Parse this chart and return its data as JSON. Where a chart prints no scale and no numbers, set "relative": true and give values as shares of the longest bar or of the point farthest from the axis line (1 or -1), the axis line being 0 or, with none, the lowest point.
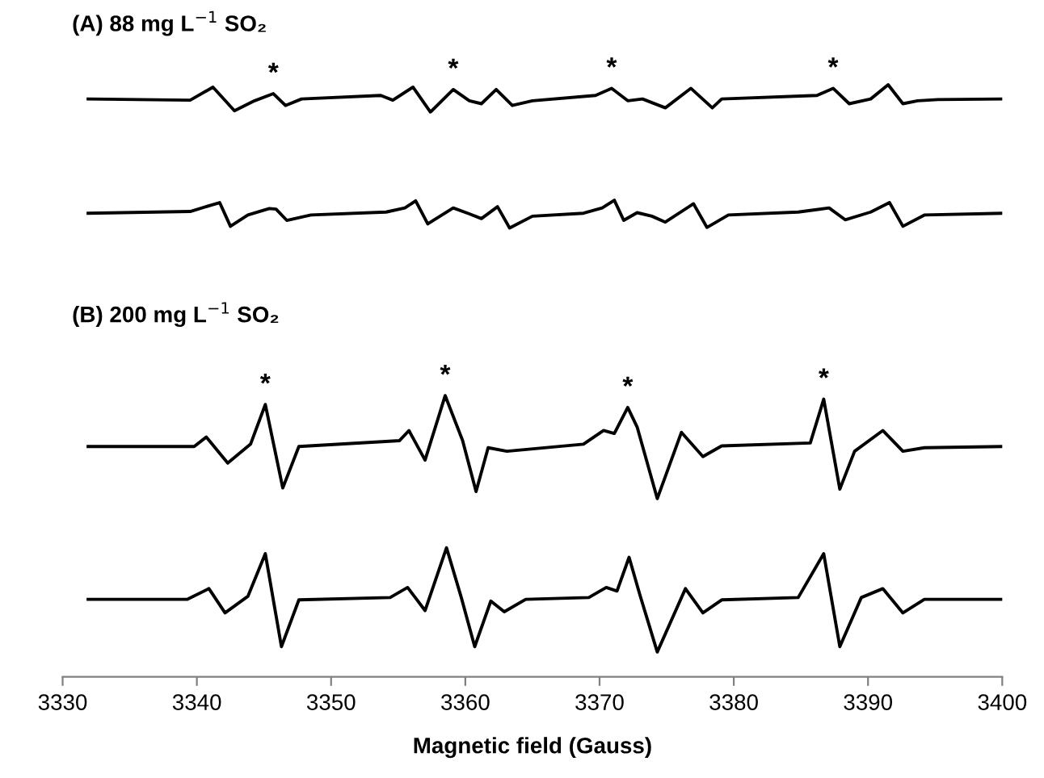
{
  "chart_data": {
    "type": "line",
    "relative": true,
    "xlabel": "Magnetic field (Gauss)",
    "xlim": [
      3330,
      3400
    ],
    "xticks": [
      3330,
      3340,
      3350,
      3360,
      3370,
      3380,
      3390,
      3400
    ],
    "annotations": [
      "(A) 88 mg L$^{−1}$ SO₂",
      "(B) 200 mg L$^{−1}$ SO₂",
      {
        "text": "*",
        "x": 3345.7,
        "y": 0.985
      },
      {
        "text": "*",
        "x": 3359.1,
        "y": 0.992
      },
      {
        "text": "*",
        "x": 3370.9,
        "y": 0.994
      },
      {
        "text": "*",
        "x": 3387.4,
        "y": 0.994
      },
      {
        "text": "*",
        "x": 3345.1,
        "y": 0.46
      },
      {
        "text": "*",
        "x": 3358.5,
        "y": 0.475
      },
      {
        "text": "*",
        "x": 3372.1,
        "y": 0.455
      },
      {
        "text": "*",
        "x": 3386.7,
        "y": 0.469
      }
    ],
    "series": [
      {
        "color": "#000000",
        "x": [
          3331.9,
          3339.5,
          3341.2,
          3342.8,
          3344.3,
          3345.7,
          3346.6,
          3347.8,
          3353.7,
          3354.6,
          3356.1,
          3357.4,
          3359.1,
          3360.3,
          3361.2,
          3362.3,
          3363.5,
          3365.0,
          3369.7,
          3370.9,
          3372.1,
          3373.2,
          3374.9,
          3376.8,
          3378.4,
          3379.1,
          3386.2,
          3387.4,
          3388.6,
          3390.2,
          3391.5,
          3392.6,
          3393.7,
          3395.2,
          3400
        ],
        "values": [
          0.976,
          0.974,
          0.996,
          0.956,
          0.973,
          0.985,
          0.965,
          0.976,
          0.982,
          0.974,
          0.996,
          0.954,
          0.992,
          0.973,
          0.968,
          0.992,
          0.965,
          0.973,
          0.982,
          0.994,
          0.973,
          0.976,
          0.961,
          0.994,
          0.961,
          0.976,
          0.982,
          0.994,
          0.968,
          0.976,
          1.0,
          0.968,
          0.973,
          0.975,
          0.976
        ]
      },
      {
        "color": "#000000",
        "x": [
          3331.9,
          3339.5,
          3341.7,
          3342.5,
          3343.8,
          3345.4,
          3345.9,
          3346.7,
          3348.5,
          3354.1,
          3355.5,
          3356.3,
          3357.2,
          3359.1,
          3360.3,
          3361.2,
          3362.4,
          3363.3,
          3365.0,
          3368.8,
          3370.2,
          3371.1,
          3371.8,
          3372.8,
          3373.9,
          3374.9,
          3377.0,
          3378.0,
          3379.6,
          3384.8,
          3387.1,
          3388.3,
          3390.2,
          3391.6,
          3392.6,
          3394.2,
          3400
        ],
        "values": [
          0.783,
          0.786,
          0.801,
          0.761,
          0.78,
          0.791,
          0.79,
          0.771,
          0.78,
          0.785,
          0.792,
          0.804,
          0.765,
          0.792,
          0.782,
          0.774,
          0.794,
          0.758,
          0.778,
          0.783,
          0.792,
          0.805,
          0.771,
          0.784,
          0.778,
          0.768,
          0.799,
          0.759,
          0.78,
          0.785,
          0.792,
          0.772,
          0.785,
          0.801,
          0.761,
          0.78,
          0.783
        ]
      },
      {
        "color": "#000000",
        "x": [
          3331.9,
          3339.8,
          3340.7,
          3342.3,
          3344.0,
          3345.1,
          3346.4,
          3347.6,
          3355.1,
          3355.8,
          3357.0,
          3358.5,
          3359.8,
          3360.8,
          3361.7,
          3363.1,
          3368.8,
          3370.3,
          3371.1,
          3372.1,
          3372.8,
          3374.3,
          3376.1,
          3377.7,
          3379.1,
          3385.7,
          3386.7,
          3387.9,
          3389.0,
          3391.1,
          3392.6,
          3394.2,
          3400
        ],
        "values": [
          0.389,
          0.389,
          0.405,
          0.361,
          0.393,
          0.46,
          0.319,
          0.389,
          0.399,
          0.416,
          0.366,
          0.475,
          0.399,
          0.313,
          0.387,
          0.381,
          0.393,
          0.416,
          0.411,
          0.455,
          0.422,
          0.301,
          0.413,
          0.372,
          0.39,
          0.395,
          0.469,
          0.317,
          0.381,
          0.416,
          0.381,
          0.387,
          0.389
        ]
      },
      {
        "color": "#000000",
        "x": [
          3331.9,
          3339.3,
          3340.9,
          3342.1,
          3343.8,
          3345.1,
          3346.3,
          3347.6,
          3354.4,
          3355.7,
          3357.0,
          3358.6,
          3359.7,
          3360.7,
          3361.9,
          3362.9,
          3364.5,
          3369.2,
          3370.5,
          3371.3,
          3372.2,
          3373.0,
          3374.3,
          3376.4,
          3377.7,
          3379.1,
          3384.8,
          3386.7,
          3387.9,
          3389.5,
          3391.1,
          3392.6,
          3394.2,
          3400
        ],
        "values": [
          0.131,
          0.131,
          0.149,
          0.108,
          0.136,
          0.208,
          0.051,
          0.13,
          0.134,
          0.151,
          0.112,
          0.218,
          0.134,
          0.051,
          0.128,
          0.11,
          0.131,
          0.134,
          0.151,
          0.145,
          0.202,
          0.139,
          0.042,
          0.149,
          0.108,
          0.13,
          0.134,
          0.208,
          0.051,
          0.134,
          0.149,
          0.108,
          0.131,
          0.131
        ]
      }
    ]
  }
}
